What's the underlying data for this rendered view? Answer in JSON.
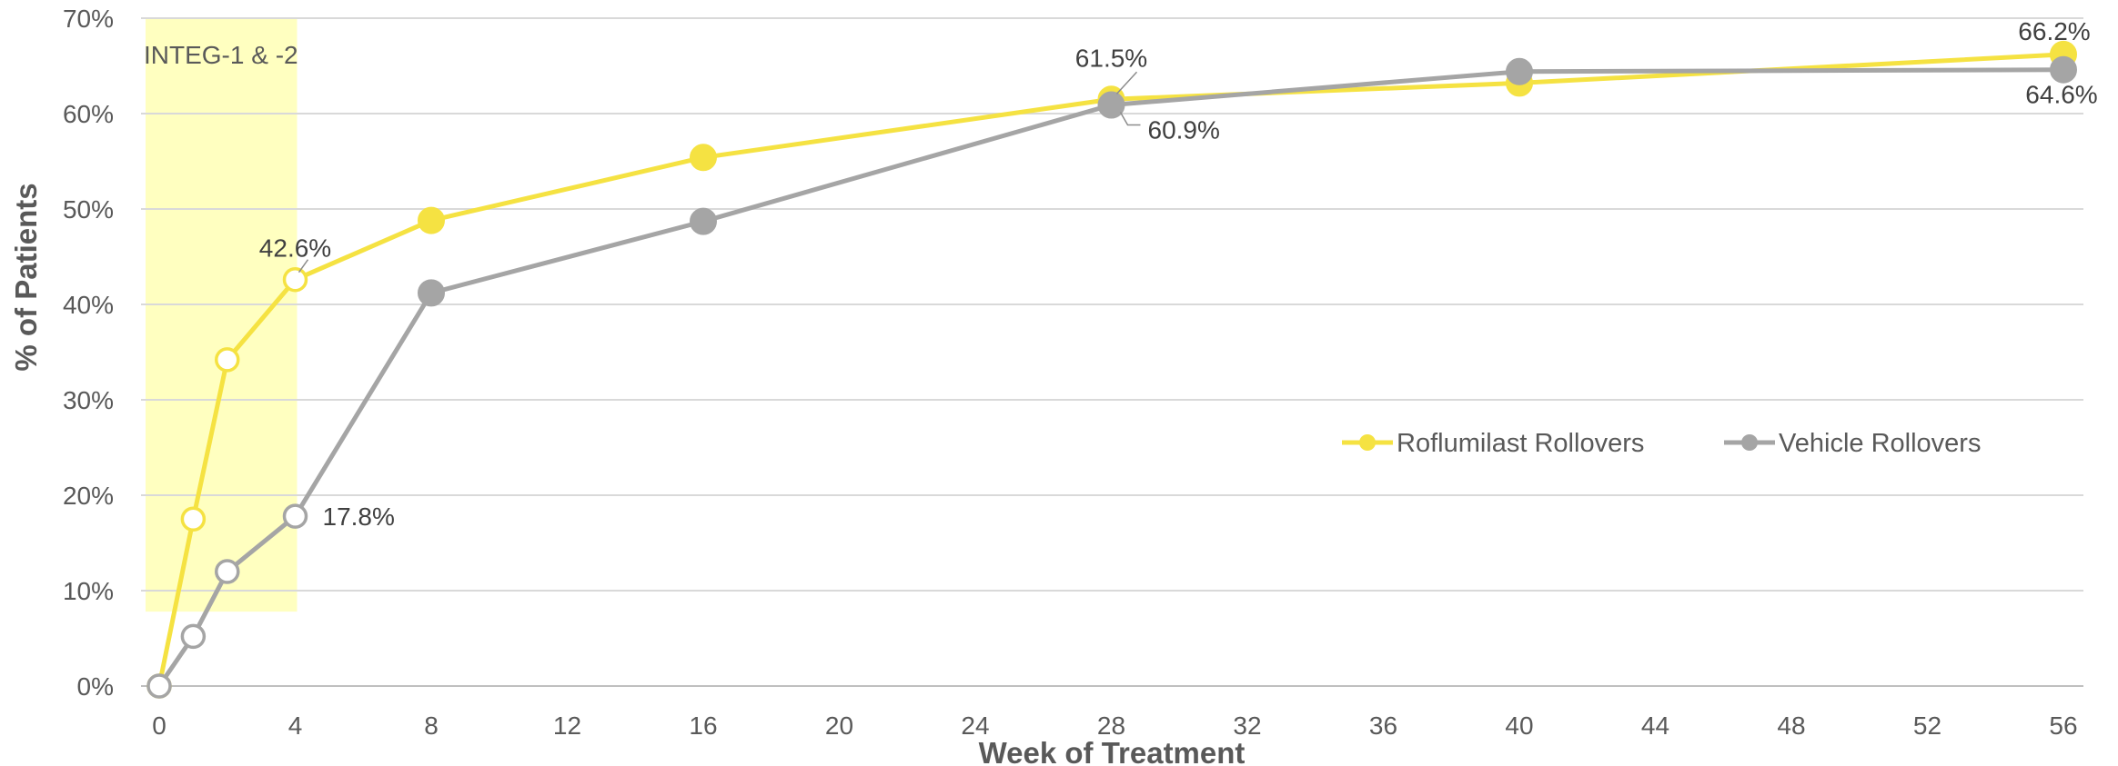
{
  "chart_data": {
    "type": "line",
    "xlabel": "Week of Treatment",
    "ylabel": "% of Patients",
    "x_ticks": [
      0,
      4,
      8,
      12,
      16,
      20,
      24,
      28,
      32,
      36,
      40,
      44,
      48,
      52,
      56
    ],
    "xlim": [
      0,
      56
    ],
    "ylim": [
      0,
      70
    ],
    "y_ticks": [
      0,
      10,
      20,
      30,
      40,
      50,
      60,
      70
    ],
    "y_tick_suffix": "%",
    "grid": "horizontal",
    "legend_position": "center-right",
    "shaded_region": {
      "label": "INTEG-1 & -2",
      "x_from": 0,
      "x_to": 4,
      "color": "#ffffc0"
    },
    "series": [
      {
        "name": "Roflumilast Rollovers",
        "color": "#f5e242",
        "points": [
          {
            "x": 0,
            "y": 0,
            "hollow": true
          },
          {
            "x": 1,
            "y": 17.5,
            "hollow": true
          },
          {
            "x": 2,
            "y": 34.2,
            "hollow": true
          },
          {
            "x": 4,
            "y": 42.6,
            "hollow": true
          },
          {
            "x": 8,
            "y": 48.8,
            "hollow": false
          },
          {
            "x": 16,
            "y": 55.4,
            "hollow": false
          },
          {
            "x": 28,
            "y": 61.5,
            "hollow": false
          },
          {
            "x": 40,
            "y": 63.2,
            "hollow": false
          },
          {
            "x": 56,
            "y": 66.2,
            "hollow": false
          }
        ]
      },
      {
        "name": "Vehicle Rollovers",
        "color": "#a5a5a5",
        "points": [
          {
            "x": 0,
            "y": 0,
            "hollow": true
          },
          {
            "x": 1,
            "y": 5.2,
            "hollow": true
          },
          {
            "x": 2,
            "y": 12.0,
            "hollow": true
          },
          {
            "x": 4,
            "y": 17.8,
            "hollow": true
          },
          {
            "x": 8,
            "y": 41.2,
            "hollow": false
          },
          {
            "x": 16,
            "y": 48.7,
            "hollow": false
          },
          {
            "x": 28,
            "y": 60.9,
            "hollow": false
          },
          {
            "x": 40,
            "y": 64.4,
            "hollow": false
          },
          {
            "x": 56,
            "y": 64.6,
            "hollow": false
          }
        ]
      }
    ],
    "annotations": [
      {
        "series": 0,
        "x": 4,
        "y": 42.6,
        "text": "42.6%",
        "placement": "above"
      },
      {
        "series": 0,
        "x": 28,
        "y": 61.5,
        "text": "61.5%",
        "placement": "above"
      },
      {
        "series": 0,
        "x": 56,
        "y": 66.2,
        "text": "66.2%",
        "placement": "above-left"
      },
      {
        "series": 1,
        "x": 4,
        "y": 17.8,
        "text": "17.8%",
        "placement": "right"
      },
      {
        "series": 1,
        "x": 28,
        "y": 60.9,
        "text": "60.9%",
        "placement": "below-right"
      },
      {
        "series": 1,
        "x": 56,
        "y": 64.6,
        "text": "64.6%",
        "placement": "below"
      }
    ]
  }
}
